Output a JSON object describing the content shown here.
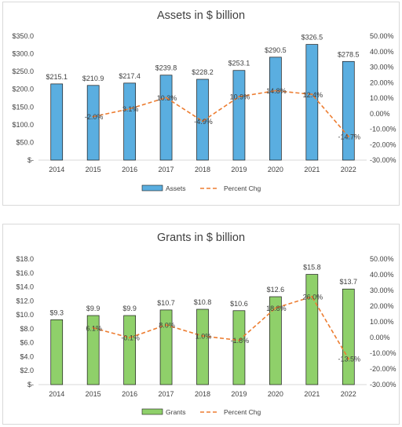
{
  "chart_data": [
    {
      "type": "bar",
      "title": "Assets in $ billion",
      "categories": [
        "2014",
        "2015",
        "2016",
        "2017",
        "2018",
        "2019",
        "2020",
        "2021",
        "2022"
      ],
      "series": [
        {
          "name": "Assets",
          "kind": "bar",
          "axis": "left",
          "color": "#5aaee0",
          "values": [
            215.1,
            210.9,
            217.4,
            239.8,
            228.2,
            253.1,
            290.5,
            326.5,
            278.5
          ],
          "labels": [
            "$215.1",
            "$210.9",
            "$217.4",
            "$239.8",
            "$228.2",
            "$253.1",
            "$290.5",
            "$326.5",
            "$278.5"
          ]
        },
        {
          "name": "Percent Chg",
          "kind": "line",
          "axis": "right",
          "color": "#ed7d31",
          "dashed": true,
          "values": [
            null,
            -2.0,
            3.1,
            10.3,
            -4.9,
            10.9,
            14.8,
            12.4,
            -14.7
          ],
          "labels": [
            "",
            "-2.0%",
            "3.1%",
            "10.3%",
            "-4.9%",
            "10.9%",
            "14.8%",
            "12.4%",
            "-14.7%"
          ]
        }
      ],
      "yleft": {
        "min": 0,
        "max": 350,
        "step": 50,
        "ticks": [
          "$-",
          "$50.0",
          "$100.0",
          "$150.0",
          "$200.0",
          "$250.0",
          "$300.0",
          "$350.0"
        ]
      },
      "yright": {
        "min": -30,
        "max": 50,
        "step": 10,
        "ticks": [
          "-30.00%",
          "-20.00%",
          "-10.00%",
          "0.00%",
          "10.00%",
          "20.00%",
          "30.00%",
          "40.00%",
          "50.00%"
        ]
      },
      "legend": "bottom",
      "grid": false
    },
    {
      "type": "bar",
      "title": "Grants in $ billion",
      "categories": [
        "2014",
        "2015",
        "2016",
        "2017",
        "2018",
        "2019",
        "2020",
        "2021",
        "2022"
      ],
      "series": [
        {
          "name": "Grants",
          "kind": "bar",
          "axis": "left",
          "color": "#8fd06a",
          "values": [
            9.3,
            9.9,
            9.9,
            10.7,
            10.8,
            10.6,
            12.6,
            15.8,
            13.7
          ],
          "labels": [
            "$9.3",
            "$9.9",
            "$9.9",
            "$10.7",
            "$10.8",
            "$10.6",
            "$12.6",
            "$15.8",
            "$13.7"
          ]
        },
        {
          "name": "Percent Chg",
          "kind": "line",
          "axis": "right",
          "color": "#ed7d31",
          "dashed": true,
          "values": [
            null,
            6.1,
            -0.1,
            8.0,
            1.0,
            -1.8,
            18.8,
            26.0,
            -13.5
          ],
          "labels": [
            "",
            "6.1%",
            "-0.1%",
            "8.0%",
            "1.0%",
            "-1.8%",
            "18.8%",
            "26.0%",
            "-13.5%"
          ]
        }
      ],
      "yleft": {
        "min": 0,
        "max": 18,
        "step": 2,
        "ticks": [
          "$-",
          "$2.0",
          "$4.0",
          "$6.0",
          "$8.0",
          "$10.0",
          "$12.0",
          "$14.0",
          "$16.0",
          "$18.0"
        ]
      },
      "yright": {
        "min": -30,
        "max": 50,
        "step": 10,
        "ticks": [
          "-30.00%",
          "-20.00%",
          "-10.00%",
          "0.00%",
          "10.00%",
          "20.00%",
          "30.00%",
          "40.00%",
          "50.00%"
        ]
      },
      "legend": "bottom",
      "grid": false
    }
  ]
}
